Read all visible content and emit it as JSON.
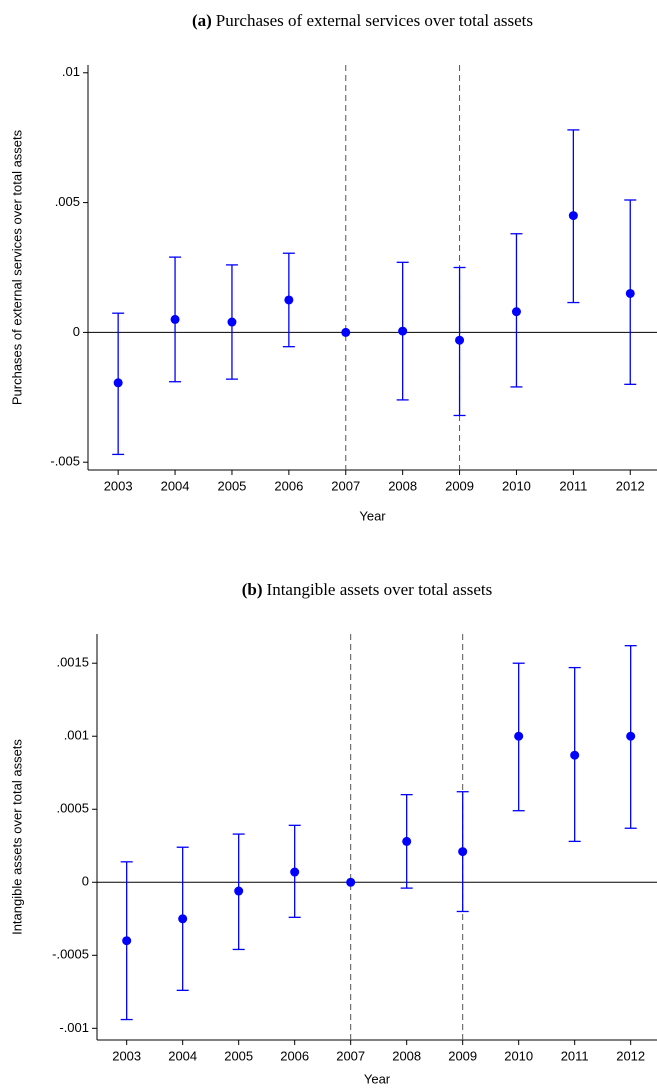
{
  "chart_data": [
    {
      "type": "errorbar",
      "title_label": "(a)",
      "title": "Purchases of external services over total assets",
      "x_label": "Year",
      "y_label": "Purchases of external services over total assets",
      "x": [
        2003,
        2004,
        2005,
        2006,
        2007,
        2008,
        2009,
        2010,
        2011,
        2012
      ],
      "values": [
        -0.00194,
        0.0005,
        0.0004,
        0.00125,
        0,
        5e-05,
        -0.0003,
        0.0008,
        0.0045,
        0.0015
      ],
      "lower": [
        -0.0047,
        -0.0019,
        -0.0018,
        -0.00055,
        null,
        -0.0026,
        -0.0032,
        -0.0021,
        0.00115,
        -0.002
      ],
      "upper": [
        0.00074,
        0.0029,
        0.0026,
        0.00305,
        null,
        0.0027,
        0.0025,
        0.0038,
        0.0078,
        0.0051
      ],
      "color": "#0000ff",
      "xlim": [
        2002.47,
        2012.47
      ],
      "xticks": [
        2003,
        2004,
        2005,
        2006,
        2007,
        2008,
        2009,
        2010,
        2011,
        2012
      ],
      "ylim": [
        -0.0053,
        0.0103
      ],
      "yticks": [
        {
          "value": -0.005,
          "label": "-.005"
        },
        0,
        {
          "value": 0.005,
          "label": ".005"
        },
        {
          "value": 0.01,
          "label": ".01"
        }
      ],
      "vlines": [
        2007,
        2009
      ],
      "hline": 0
    },
    {
      "type": "errorbar",
      "title_label": "(b)",
      "title": "Intangible assets over total assets",
      "x_label": "Year",
      "y_label": "Intangible assets over total assets",
      "x": [
        2003,
        2004,
        2005,
        2006,
        2007,
        2008,
        2009,
        2010,
        2011,
        2012
      ],
      "values": [
        -0.0004,
        -0.00025,
        -6e-05,
        7e-05,
        0,
        0.00028,
        0.00021,
        0.001,
        0.00087,
        0.001
      ],
      "lower": [
        -0.00094,
        -0.00074,
        -0.00046,
        -0.00024,
        null,
        -4e-05,
        -0.0002,
        0.00049,
        0.00028,
        0.00037
      ],
      "upper": [
        0.00014,
        0.00024,
        0.00033,
        0.00039,
        null,
        0.0006,
        0.00062,
        0.0015,
        0.00147,
        0.00162
      ],
      "color": "#0000ff",
      "xlim": [
        2002.47,
        2012.47
      ],
      "xticks": [
        2003,
        2004,
        2005,
        2006,
        2007,
        2008,
        2009,
        2010,
        2011,
        2012
      ],
      "ylim": [
        -0.00108,
        0.0017
      ],
      "yticks": [
        {
          "value": -0.001,
          "label": "-.001"
        },
        {
          "value": -0.0005,
          "label": "-.0005"
        },
        0,
        {
          "value": 0.0005,
          "label": ".0005"
        },
        {
          "value": 0.001,
          "label": ".001"
        },
        {
          "value": 0.0015,
          "label": ".0015"
        }
      ],
      "vlines": [
        2007,
        2009
      ],
      "hline": 0
    }
  ]
}
